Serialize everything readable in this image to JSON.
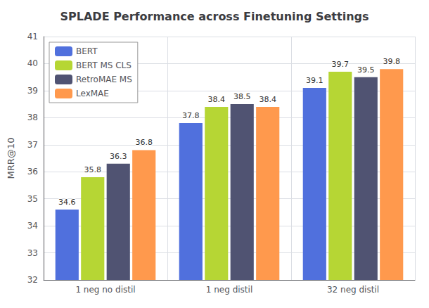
{
  "chart_data": {
    "type": "bar",
    "title": "SPLADE Performance across Finetuning Settings",
    "ylabel": "MRR@10",
    "categories": [
      "1 neg no distil",
      "1 neg distil",
      "32 neg distil"
    ],
    "series": [
      {
        "name": "BERT",
        "values": [
          34.6,
          37.8,
          39.1
        ]
      },
      {
        "name": "BERT MS CLS",
        "values": [
          35.8,
          38.4,
          39.7
        ]
      },
      {
        "name": "RetroMAE MS",
        "values": [
          36.3,
          38.5,
          39.5
        ]
      },
      {
        "name": "LexMAE",
        "values": [
          36.8,
          38.4,
          39.8
        ]
      }
    ],
    "ylim": [
      32,
      41
    ],
    "yticks": [
      32,
      33,
      34,
      35,
      36,
      37,
      38,
      39,
      40,
      41
    ],
    "grid": true,
    "legend": "upper left",
    "data_labels": true
  }
}
